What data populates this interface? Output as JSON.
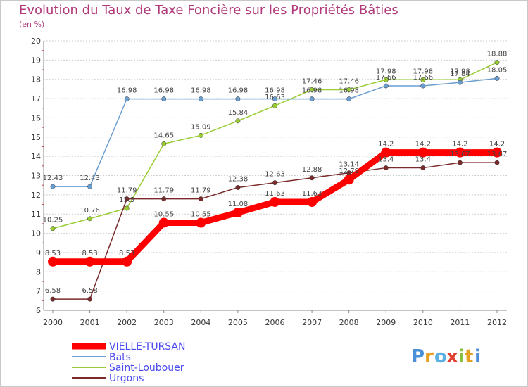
{
  "chart_data": {
    "type": "line",
    "title": "Evolution du Taux de Taxe Foncière sur les Propriétés Bâties",
    "subtitle": "(en %)",
    "x": [
      "2000",
      "2001",
      "2002",
      "2003",
      "2004",
      "2005",
      "2006",
      "2007",
      "2008",
      "2009",
      "2010",
      "2011",
      "2012"
    ],
    "ylim": [
      6,
      20
    ],
    "yticks": [
      "6",
      "7",
      "8",
      "9",
      "10",
      "11",
      "12",
      "13",
      "14",
      "15",
      "16",
      "17",
      "18",
      "19",
      "20"
    ],
    "grid": "horizontal",
    "legend_position": "bottom-left",
    "series": [
      {
        "name": "VIELLE-TURSAN",
        "color": "#ff0000",
        "values": [
          8.53,
          8.53,
          8.53,
          10.55,
          10.55,
          11.08,
          11.63,
          11.63,
          12.79,
          14.2,
          14.2,
          14.2,
          14.2
        ],
        "labels": [
          "8.53",
          "8.53",
          "8.53",
          "10.55",
          "10.55",
          "11.08",
          "11.63",
          "11.63",
          "12.79",
          "14.2",
          "14.2",
          "14.2",
          "14.2"
        ]
      },
      {
        "name": "Bats",
        "color": "#6a9ed0",
        "values": [
          12.43,
          12.43,
          16.98,
          16.98,
          16.98,
          16.98,
          16.98,
          16.98,
          16.98,
          17.66,
          17.66,
          17.84,
          18.05
        ],
        "labels": [
          "12.43",
          "12.43",
          "16.98",
          "16.98",
          "16.98",
          "16.98",
          "16.98",
          "16.98",
          "16.98",
          "17.66",
          "17.66",
          "17.84",
          "18.05"
        ]
      },
      {
        "name": "Saint-Loubouer",
        "color": "#99cc33",
        "values": [
          10.25,
          10.76,
          11.3,
          14.65,
          15.09,
          15.84,
          16.63,
          17.46,
          17.46,
          17.98,
          17.98,
          17.98,
          18.88
        ],
        "labels": [
          "10.25",
          "10.76",
          "11.3",
          "14.65",
          "15.09",
          "15.84",
          "16.63",
          "17.46",
          "17.46",
          "17.98",
          "17.98",
          "17.98",
          "18.88"
        ]
      },
      {
        "name": "Urgons",
        "color": "#7a2a2a",
        "values": [
          6.58,
          6.58,
          11.79,
          11.79,
          11.79,
          12.38,
          12.63,
          12.88,
          13.14,
          13.4,
          13.4,
          13.67,
          13.67
        ],
        "labels": [
          "6.58",
          "6.58",
          "11.79",
          "11.79",
          "11.79",
          "12.38",
          "12.63",
          "12.88",
          "13.14",
          "13.4",
          "13.4",
          "13.67",
          "13.67"
        ]
      }
    ]
  },
  "logo": {
    "text": "Proxiti"
  }
}
